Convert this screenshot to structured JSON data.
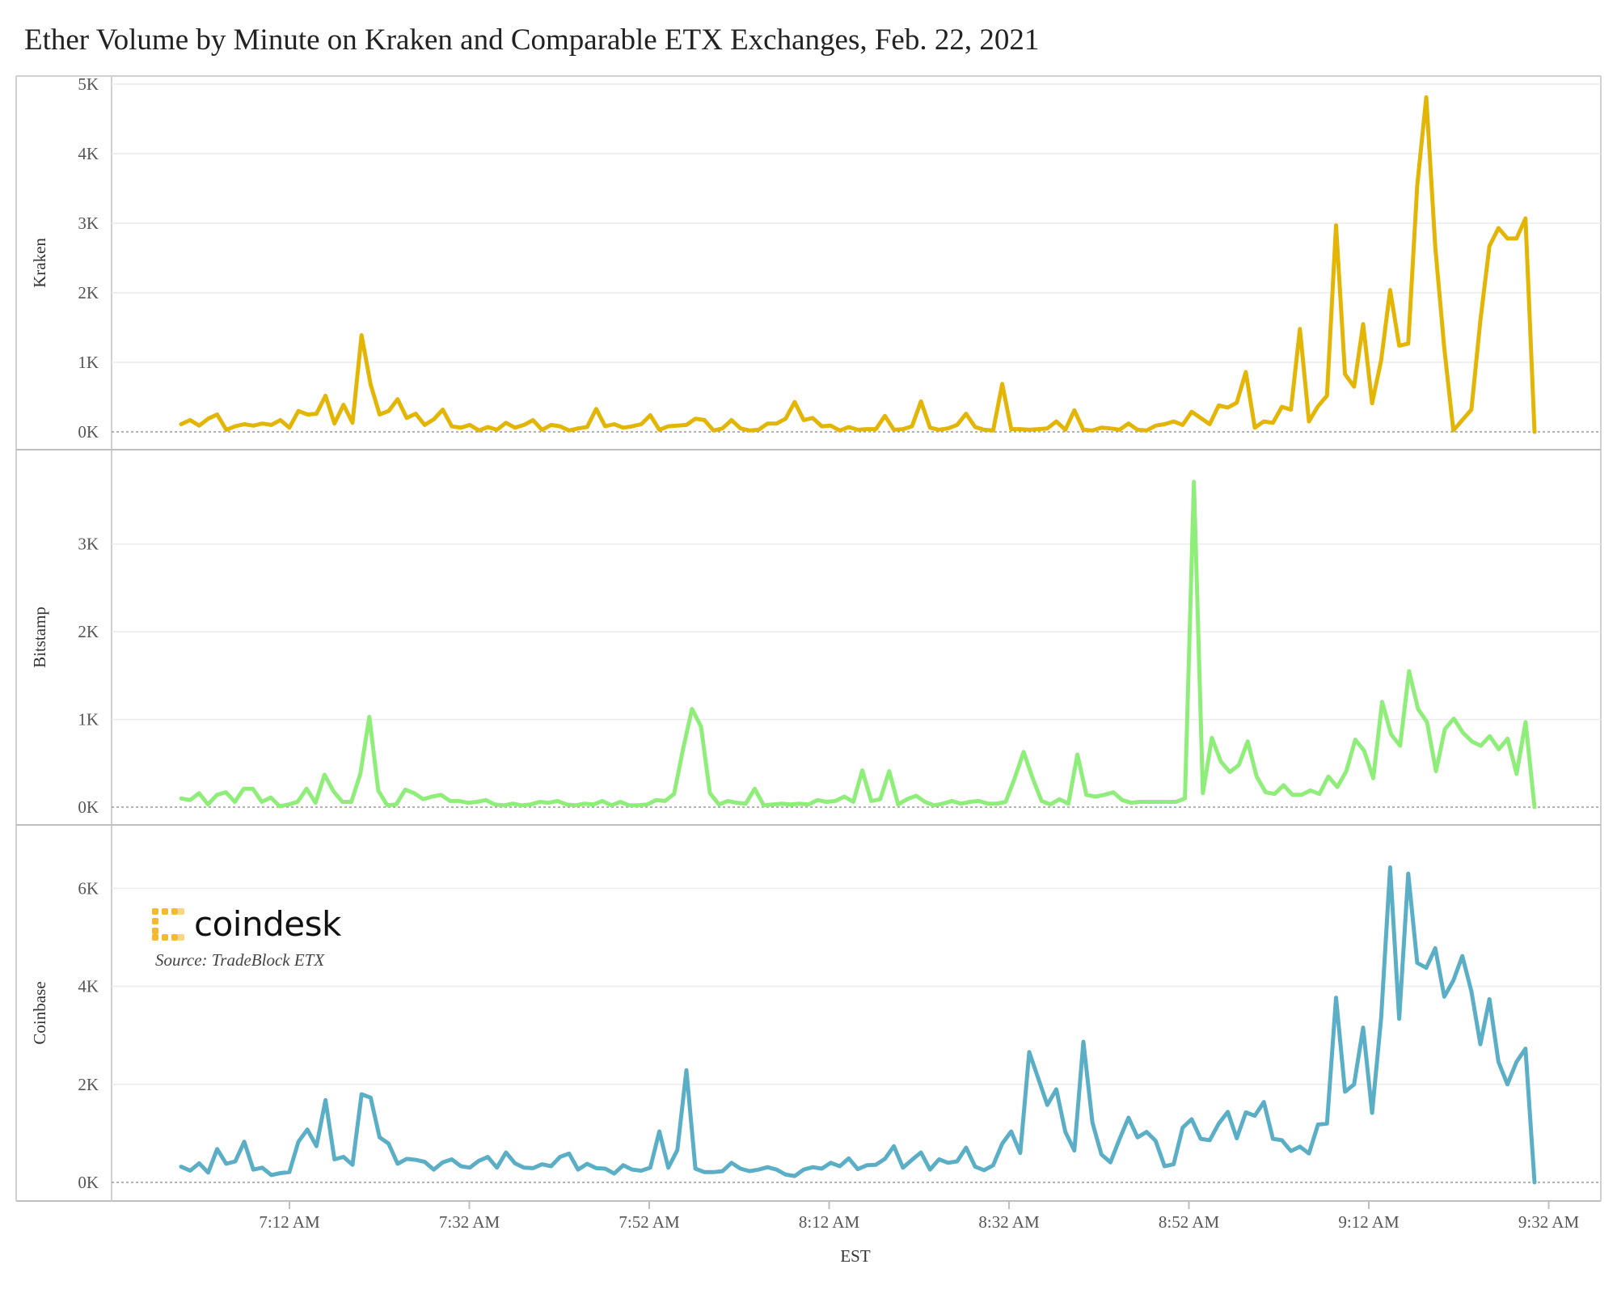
{
  "title": "Ether Volume by Minute on Kraken and Comparable ETX Exchanges, Feb. 22, 2021",
  "source": "Source: TradeBlock ETX",
  "logo_text": "coindesk",
  "logo_color": "#f3ba2f",
  "chart_data": {
    "type": "line",
    "title": "Ether Volume by Minute on Kraken and Comparable ETX Exchanges, Feb. 22, 2021",
    "xlabel": "EST",
    "x_ticks": [
      "7:12 AM",
      "7:32 AM",
      "7:52 AM",
      "8:12 AM",
      "8:32 AM",
      "8:52 AM",
      "9:12 AM",
      "9:32 AM"
    ],
    "x_range": [
      "6:59 AM",
      "9:32 AM"
    ],
    "grid": true,
    "legend": "none",
    "panels": [
      {
        "name": "Kraken",
        "ylabel": "Kraken",
        "color": "#e3b505",
        "ylim": [
          0,
          5000
        ],
        "y_ticks": [
          "0K",
          "1K",
          "2K",
          "3K",
          "4K",
          "5K"
        ],
        "values": [
          110,
          170,
          90,
          190,
          250,
          30,
          80,
          110,
          90,
          120,
          100,
          170,
          60,
          300,
          250,
          260,
          520,
          120,
          390,
          130,
          1390,
          680,
          250,
          300,
          470,
          200,
          260,
          100,
          180,
          320,
          80,
          60,
          100,
          20,
          70,
          30,
          130,
          60,
          100,
          170,
          30,
          100,
          80,
          20,
          50,
          70,
          330,
          80,
          110,
          60,
          80,
          110,
          240,
          30,
          80,
          90,
          100,
          190,
          170,
          20,
          50,
          170,
          50,
          20,
          30,
          120,
          120,
          190,
          430,
          170,
          200,
          80,
          90,
          20,
          70,
          30,
          40,
          40,
          230,
          30,
          40,
          80,
          440,
          60,
          30,
          50,
          100,
          260,
          70,
          30,
          20,
          690,
          40,
          40,
          30,
          40,
          50,
          150,
          30,
          310,
          30,
          20,
          60,
          50,
          30,
          120,
          30,
          20,
          90,
          110,
          150,
          100,
          290,
          200,
          110,
          380,
          350,
          420,
          860,
          60,
          150,
          130,
          360,
          320,
          1480,
          150,
          370,
          520,
          2970,
          830,
          650,
          1550,
          410,
          1030,
          2040,
          1240,
          1270,
          3540,
          4810,
          2660,
          1200,
          20,
          170,
          320,
          1600,
          2670,
          2930,
          2780,
          2780,
          3070,
          0
        ]
      },
      {
        "name": "Bitstamp",
        "ylabel": "Bitstamp",
        "color": "#8fee7a",
        "ylim": [
          0,
          3800
        ],
        "y_ticks": [
          "0K",
          "1K",
          "2K",
          "3K"
        ],
        "values": [
          100,
          80,
          160,
          30,
          140,
          170,
          60,
          210,
          210,
          60,
          110,
          10,
          30,
          60,
          210,
          50,
          370,
          180,
          60,
          60,
          380,
          1030,
          190,
          20,
          30,
          200,
          160,
          90,
          120,
          140,
          70,
          70,
          50,
          60,
          80,
          30,
          20,
          40,
          20,
          30,
          60,
          50,
          70,
          30,
          20,
          40,
          30,
          70,
          20,
          60,
          20,
          20,
          30,
          80,
          70,
          150,
          660,
          1120,
          920,
          160,
          30,
          70,
          50,
          40,
          210,
          20,
          30,
          40,
          30,
          40,
          30,
          80,
          60,
          70,
          120,
          60,
          420,
          70,
          90,
          410,
          30,
          90,
          130,
          60,
          20,
          40,
          70,
          40,
          60,
          70,
          40,
          40,
          60,
          330,
          630,
          330,
          70,
          30,
          90,
          40,
          600,
          140,
          120,
          140,
          170,
          80,
          50,
          60,
          60,
          60,
          60,
          60,
          100,
          3710,
          160,
          790,
          520,
          400,
          480,
          750,
          350,
          170,
          150,
          250,
          140,
          140,
          190,
          150,
          350,
          230,
          410,
          770,
          640,
          330,
          1200,
          830,
          700,
          1550,
          1120,
          970,
          410,
          890,
          1010,
          850,
          750,
          700,
          810,
          660,
          780,
          380,
          970,
          0
        ]
      },
      {
        "name": "Coinbase",
        "ylabel": "Coinbase",
        "color": "#5aaec6",
        "ylim": [
          0,
          6900
        ],
        "y_ticks": [
          "0K",
          "2K",
          "4K",
          "6K"
        ],
        "values": [
          320,
          240,
          390,
          200,
          680,
          380,
          430,
          830,
          260,
          300,
          150,
          190,
          210,
          830,
          1080,
          740,
          1680,
          470,
          520,
          360,
          1800,
          1730,
          920,
          790,
          380,
          480,
          460,
          420,
          260,
          410,
          470,
          330,
          300,
          440,
          520,
          300,
          610,
          390,
          300,
          290,
          370,
          330,
          520,
          590,
          260,
          380,
          290,
          280,
          180,
          350,
          260,
          240,
          300,
          1040,
          300,
          660,
          2290,
          280,
          210,
          210,
          230,
          400,
          280,
          230,
          260,
          310,
          260,
          160,
          130,
          260,
          310,
          280,
          400,
          330,
          490,
          270,
          350,
          360,
          480,
          740,
          300,
          460,
          610,
          260,
          470,
          400,
          430,
          710,
          320,
          250,
          350,
          790,
          1040,
          600,
          2660,
          2120,
          1580,
          1900,
          1030,
          650,
          2870,
          1220,
          570,
          410,
          880,
          1320,
          920,
          1030,
          850,
          330,
          370,
          1120,
          1290,
          890,
          860,
          1200,
          1440,
          900,
          1430,
          1360,
          1640,
          890,
          860,
          640,
          730,
          590,
          1180,
          1200,
          3770,
          1850,
          2000,
          3160,
          1420,
          3360,
          6430,
          3340,
          6300,
          4480,
          4380,
          4780,
          3790,
          4120,
          4620,
          3900,
          2820,
          3740,
          2460,
          2000,
          2460,
          2730,
          0
        ]
      }
    ]
  }
}
